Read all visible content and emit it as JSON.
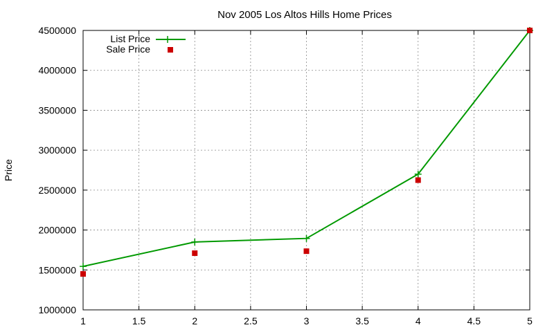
{
  "chart_data": {
    "type": "line",
    "title": "Nov 2005 Los Altos Hills Home Prices",
    "xlabel": "",
    "ylabel": "Price",
    "xlim": [
      1,
      5
    ],
    "ylim": [
      1000000,
      4500000
    ],
    "x_ticks": [
      "1",
      "1.5",
      "2",
      "2.5",
      "3",
      "3.5",
      "4",
      "4.5",
      "5"
    ],
    "y_ticks": [
      "1000000",
      "1500000",
      "2000000",
      "2500000",
      "3000000",
      "3500000",
      "4000000",
      "4500000"
    ],
    "grid": true,
    "legend_position": "top-left",
    "series": [
      {
        "name": "List Price",
        "style": "line-with-plus-markers",
        "color": "#009900",
        "x": [
          1,
          2,
          3,
          4,
          5
        ],
        "y": [
          1545000,
          1850000,
          1895000,
          2700000,
          4500000
        ]
      },
      {
        "name": "Sale Price",
        "style": "square-markers",
        "color": "#cc0000",
        "x": [
          1,
          2,
          3,
          4,
          5
        ],
        "y": [
          1450000,
          1710000,
          1735000,
          2625000,
          4500000
        ]
      }
    ]
  }
}
